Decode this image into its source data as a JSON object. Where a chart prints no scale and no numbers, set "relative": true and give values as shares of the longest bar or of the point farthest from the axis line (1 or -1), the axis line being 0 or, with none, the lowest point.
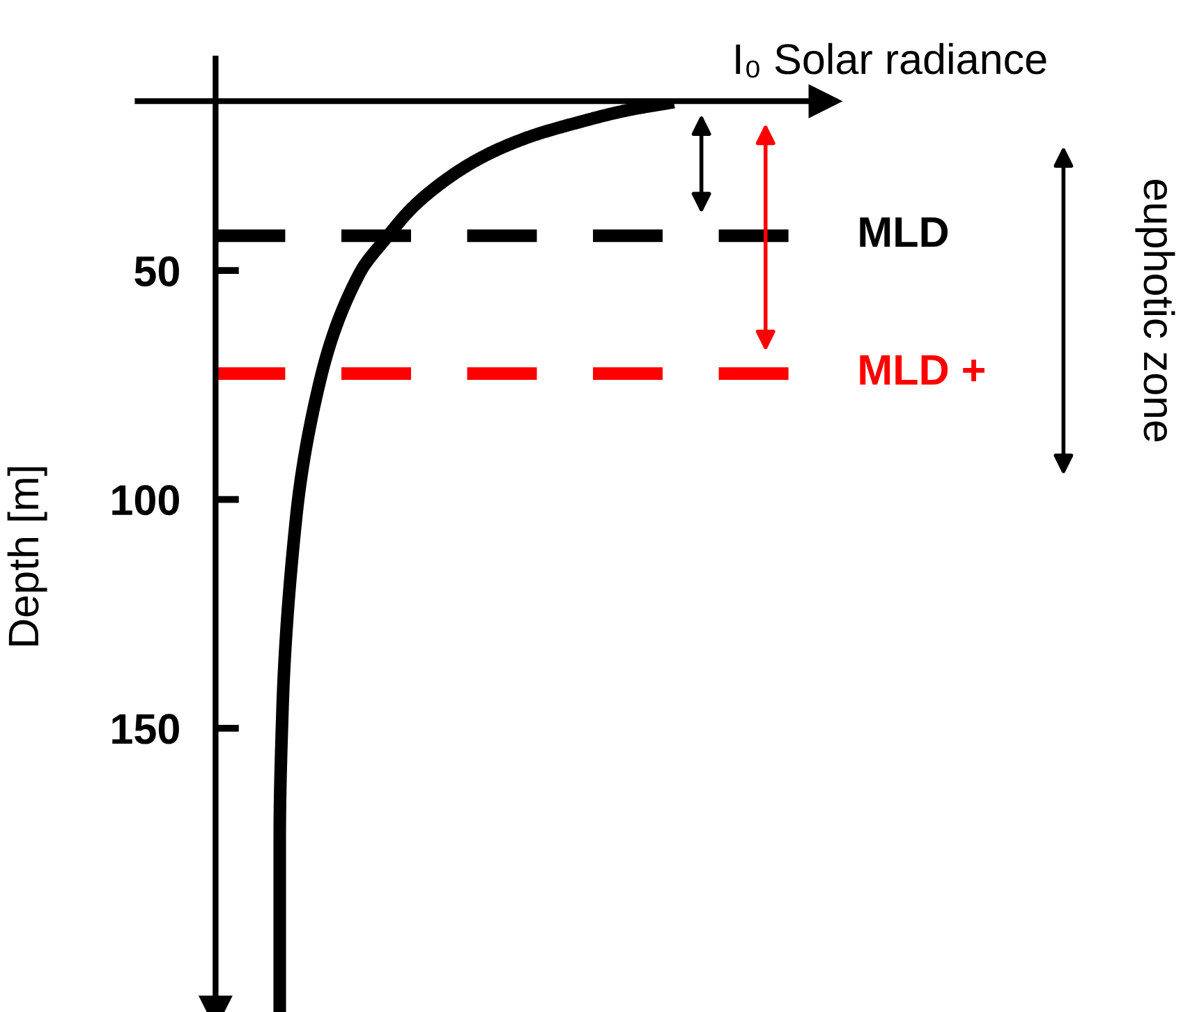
{
  "chart_data": {
    "type": "line",
    "orientation": "horizontal",
    "relative": true,
    "xlabel": "I₀ Solar radiance",
    "ylabel": "Depth [m]",
    "x": [
      13.2,
      15.0,
      17.5,
      20.8,
      25.1,
      30.2,
      36.3,
      42.7,
      50.3,
      72.8,
      103.8,
      146.0,
      174.3,
      212
    ],
    "series": [
      {
        "color": "#000000",
        "values": [
          1,
          0.897,
          0.796,
          0.684,
          0.584,
          0.502,
          0.429,
          0.374,
          0.316,
          0.231,
          0.176,
          0.146,
          0.14,
          0.14
        ]
      }
    ],
    "ylim": [
      212,
      13
    ],
    "yticks": [
      50,
      100,
      150
    ],
    "ref_lines": [
      {
        "axis": "y",
        "value": 42.4,
        "label": "MLD",
        "color": "#000000",
        "line_style": "dashed"
      },
      {
        "axis": "y",
        "value": 72.5,
        "label": "MLD +",
        "color": "#ff0000",
        "line_style": "dashed"
      }
    ],
    "annotations": [
      "euphotic zone"
    ],
    "marker": "none",
    "line_style": "solid",
    "grid": false,
    "legend": false
  }
}
